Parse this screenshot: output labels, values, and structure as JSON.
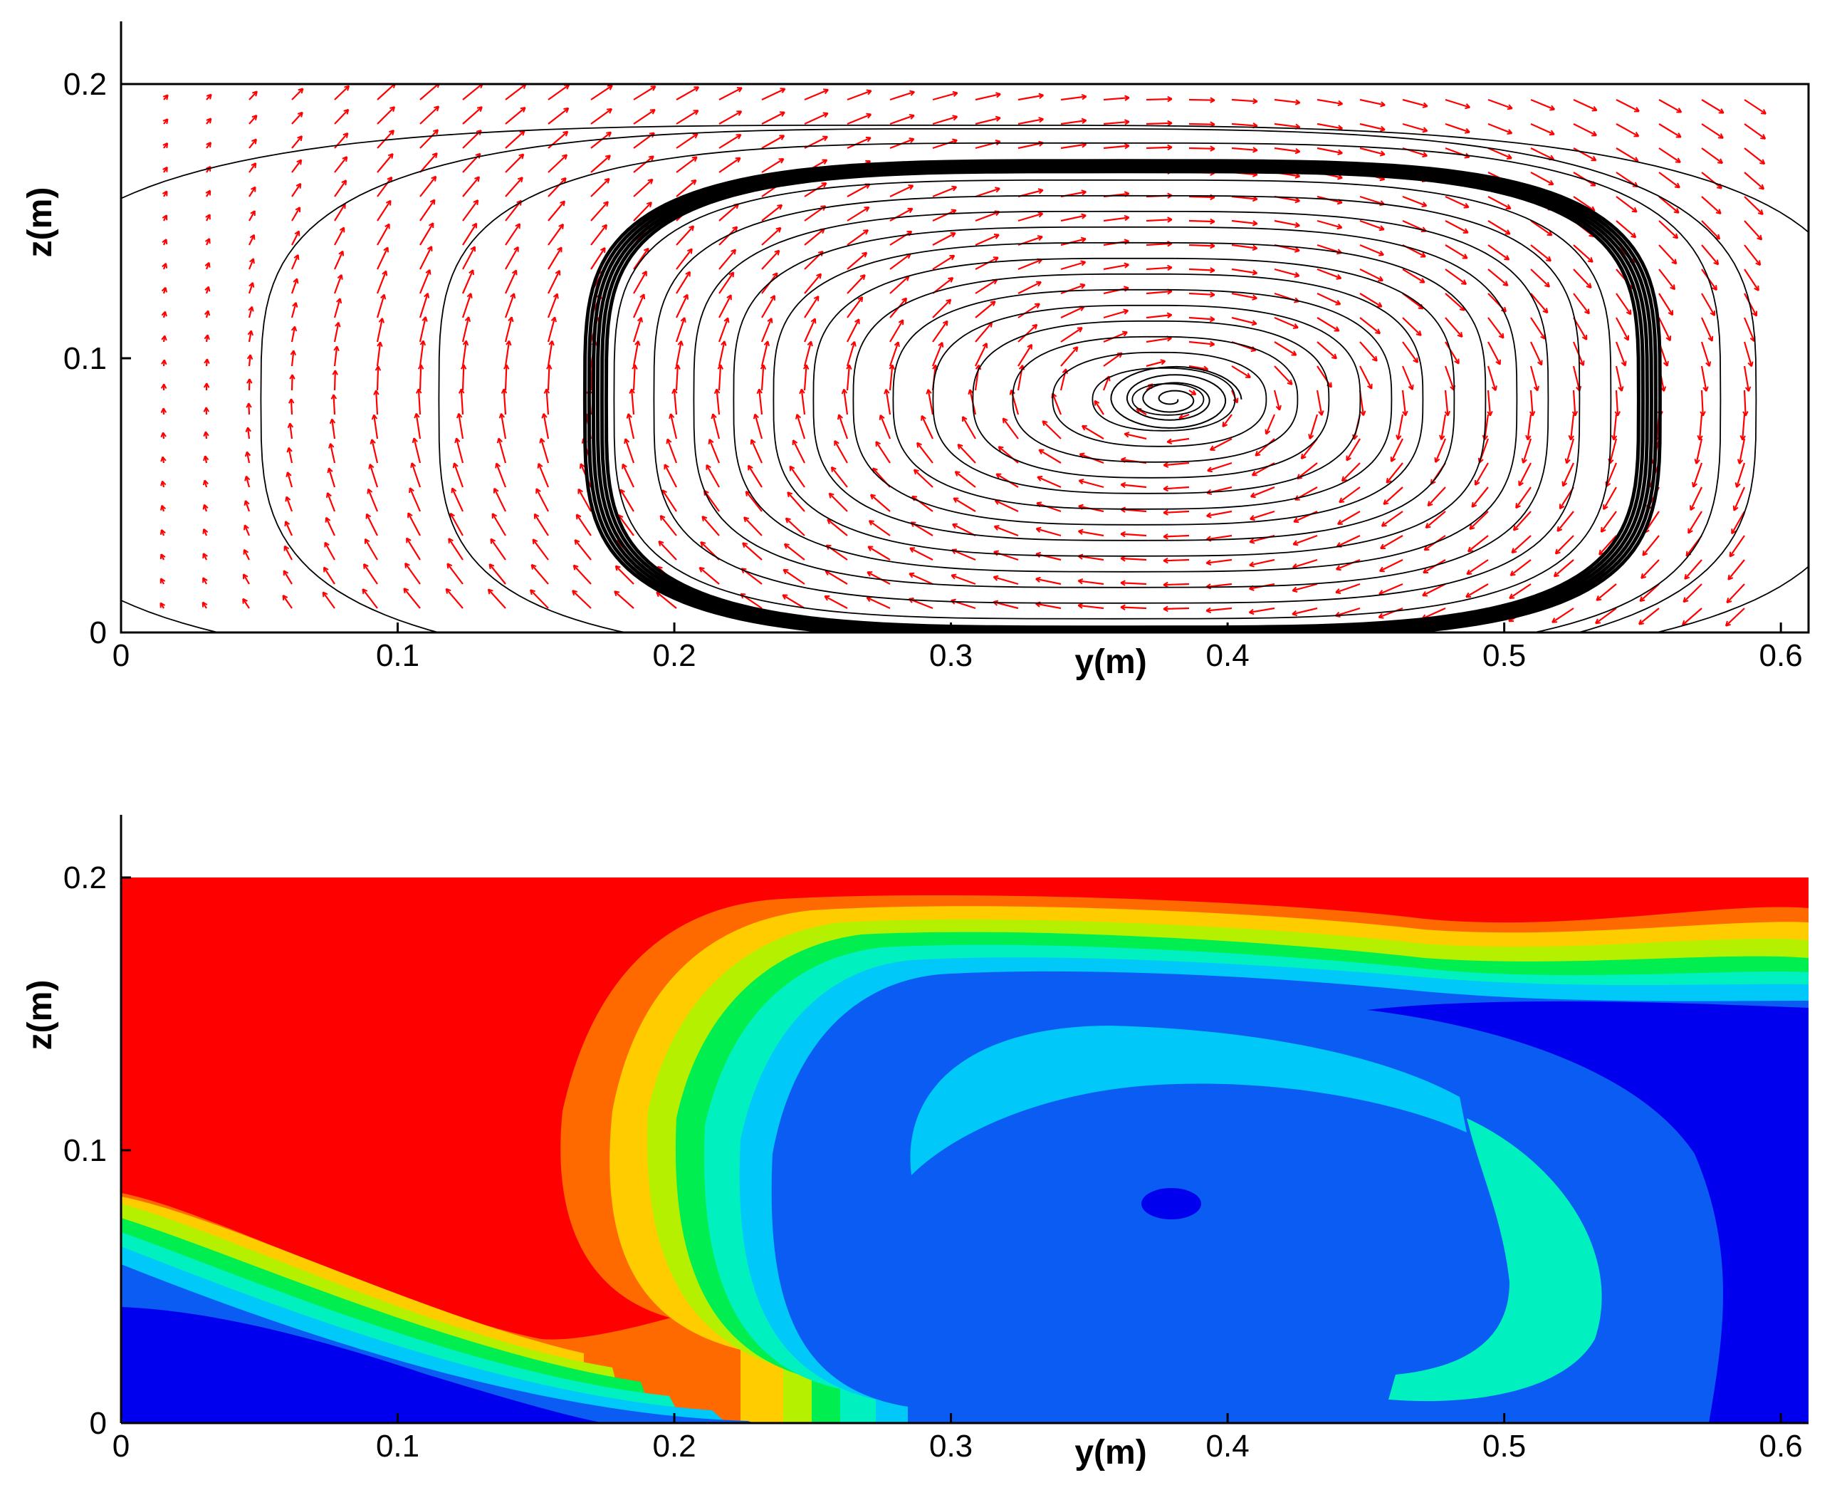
{
  "chart_data": [
    {
      "type": "vector-field-streamlines",
      "xlabel": "y(m)",
      "ylabel": "z(m)",
      "xlim": [
        0,
        0.61
      ],
      "ylim": [
        0,
        0.22
      ],
      "domain_top": 0.2,
      "xticks": [
        0,
        0.1,
        0.2,
        0.3,
        0.4,
        0.5,
        0.6
      ],
      "xtick_labels": [
        "0",
        "0.1",
        "0.2",
        "0.3",
        "0.4",
        "0.5",
        "0.6"
      ],
      "yticks": [
        0,
        0.1,
        0.2
      ],
      "ytick_labels": [
        "0",
        "0.1",
        "0.2"
      ],
      "vortex_center": {
        "y": 0.38,
        "z": 0.085
      },
      "vector_color": "#ff0000",
      "streamline_color": "#000000",
      "grid": false
    },
    {
      "type": "contour",
      "xlabel": "y(m)",
      "ylabel": "z(m)",
      "xlim": [
        0,
        0.61
      ],
      "ylim": [
        0,
        0.22
      ],
      "domain_top": 0.2,
      "xticks": [
        0,
        0.1,
        0.2,
        0.3,
        0.4,
        0.5,
        0.6
      ],
      "xtick_labels": [
        "0",
        "0.1",
        "0.2",
        "0.3",
        "0.4",
        "0.5",
        "0.6"
      ],
      "yticks": [
        0,
        0.1,
        0.2
      ],
      "ytick_labels": [
        "0",
        "0.1",
        "0.2"
      ],
      "colormap": [
        "#0000ee",
        "#0a5cf2",
        "#00c8f8",
        "#00f0c0",
        "#00ee50",
        "#b4f000",
        "#ffcc00",
        "#ff6a00",
        "#ff0000"
      ],
      "grid": false
    }
  ]
}
